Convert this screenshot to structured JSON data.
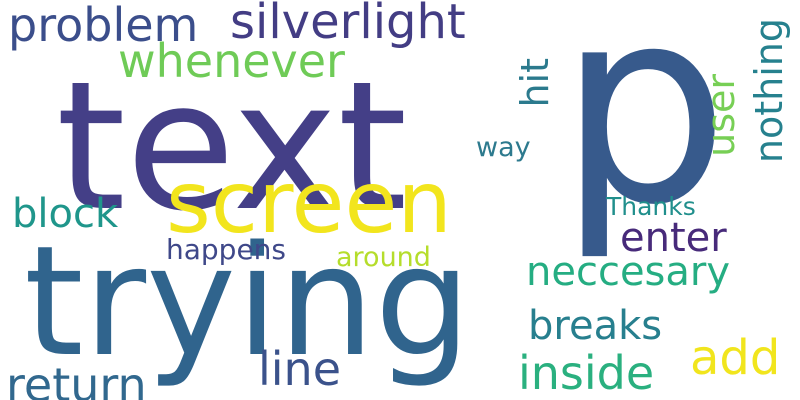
{
  "words": [
    {
      "text": "text",
      "color": "#443f87"
    },
    {
      "text": "p",
      "color": "#375a8c"
    },
    {
      "text": "trying",
      "color": "#30648d"
    },
    {
      "text": "screen",
      "color": "#f2e51d"
    },
    {
      "text": "problem",
      "color": "#3b4e8b"
    },
    {
      "text": "silverlight",
      "color": "#433d84"
    },
    {
      "text": "whenever",
      "color": "#6fcb57"
    },
    {
      "text": "hit",
      "color": "#2b7a8d"
    },
    {
      "text": "user",
      "color": "#77cf55"
    },
    {
      "text": "nothing",
      "color": "#26818e"
    },
    {
      "text": "way",
      "color": "#2d7a8e"
    },
    {
      "text": "block",
      "color": "#1f968b"
    },
    {
      "text": "Thanks",
      "color": "#208f8c"
    },
    {
      "text": "enter",
      "color": "#472a7a"
    },
    {
      "text": "happens",
      "color": "#3f4889"
    },
    {
      "text": "around",
      "color": "#b5dd2b"
    },
    {
      "text": "neccesary",
      "color": "#25ad82"
    },
    {
      "text": "breaks",
      "color": "#277f8e"
    },
    {
      "text": "line",
      "color": "#3b528b"
    },
    {
      "text": "add",
      "color": "#f1e51d"
    },
    {
      "text": "inside",
      "color": "#2ab07f"
    },
    {
      "text": "return",
      "color": "#31688e"
    }
  ]
}
